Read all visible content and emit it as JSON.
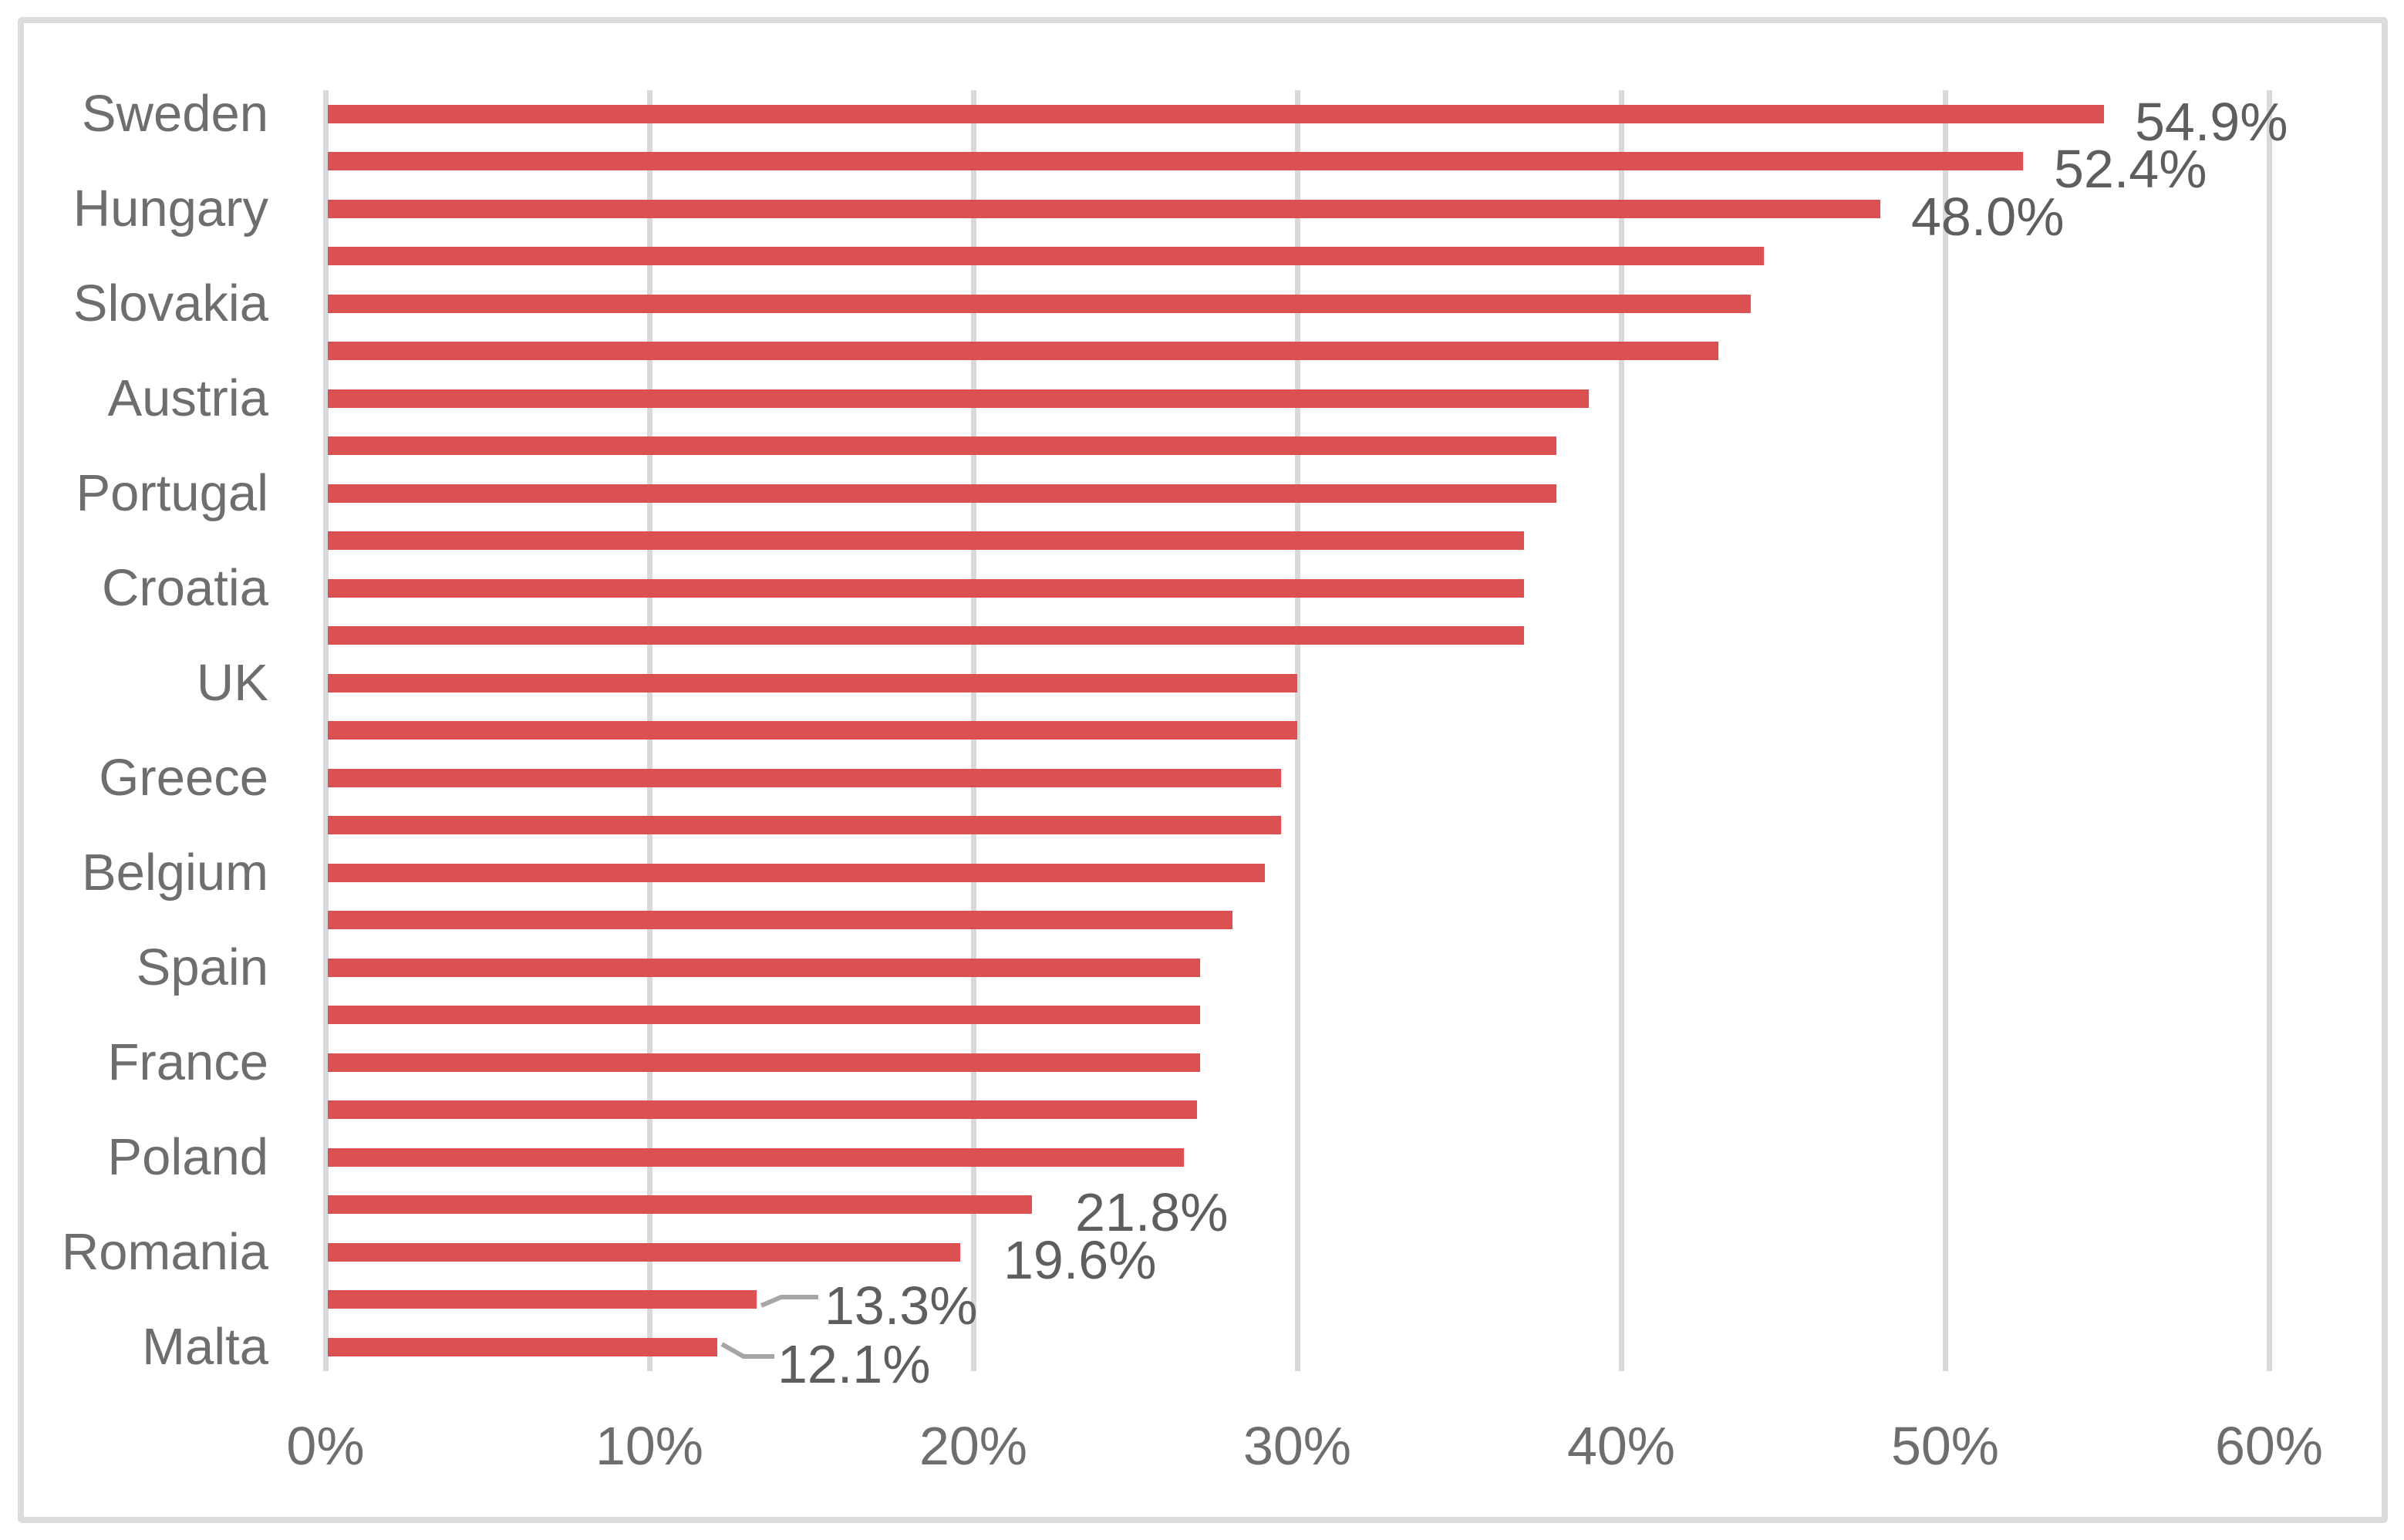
{
  "chart_data": {
    "type": "bar",
    "orientation": "horizontal",
    "title": "",
    "xlabel": "",
    "ylabel": "",
    "x_axis": {
      "ticks": [
        "0%",
        "10%",
        "20%",
        "30%",
        "40%",
        "50%",
        "60%"
      ],
      "min": 0,
      "max": 60,
      "grid": true,
      "grid_orientation": "vertical"
    },
    "legend": "none",
    "colors": {
      "bar": "#DB5050",
      "gridline": "#D9D9D9",
      "frame_border": "#DCDCDC",
      "axis_text": "#6E6E6E",
      "data_label_text": "#5E5E5E",
      "leader_line": "#A6A6A6",
      "background": "#FFFFFF"
    },
    "note": "horizontal bar chart; category labels shown on every other bar only; data labels shown on a subset of bars",
    "rows": [
      {
        "country": "Sweden",
        "value": 54.9,
        "data_label": "54.9%",
        "callout": false
      },
      {
        "country": "",
        "value": 52.4,
        "data_label": "52.4%",
        "callout": false
      },
      {
        "country": "Hungary",
        "value": 48.0,
        "data_label": "48.0%",
        "callout": false
      },
      {
        "country": "",
        "value": 44.4,
        "data_label": "",
        "callout": false
      },
      {
        "country": "Slovakia",
        "value": 44.0,
        "data_label": "",
        "callout": false
      },
      {
        "country": "",
        "value": 43.0,
        "data_label": "",
        "callout": false
      },
      {
        "country": "Austria",
        "value": 39.0,
        "data_label": "",
        "callout": false
      },
      {
        "country": "",
        "value": 38.0,
        "data_label": "",
        "callout": false
      },
      {
        "country": "Portugal",
        "value": 38.0,
        "data_label": "",
        "callout": false
      },
      {
        "country": "",
        "value": 37.0,
        "data_label": "",
        "callout": false
      },
      {
        "country": "Croatia",
        "value": 37.0,
        "data_label": "",
        "callout": false
      },
      {
        "country": "",
        "value": 37.0,
        "data_label": "",
        "callout": false
      },
      {
        "country": "UK",
        "value": 30.0,
        "data_label": "",
        "callout": false
      },
      {
        "country": "",
        "value": 30.0,
        "data_label": "",
        "callout": false
      },
      {
        "country": "Greece",
        "value": 29.5,
        "data_label": "",
        "callout": false
      },
      {
        "country": "",
        "value": 29.5,
        "data_label": "",
        "callout": false
      },
      {
        "country": "Belgium",
        "value": 29.0,
        "data_label": "",
        "callout": false
      },
      {
        "country": "",
        "value": 28.0,
        "data_label": "",
        "callout": false
      },
      {
        "country": "Spain",
        "value": 27.0,
        "data_label": "",
        "callout": false
      },
      {
        "country": "",
        "value": 27.0,
        "data_label": "",
        "callout": false
      },
      {
        "country": "France",
        "value": 27.0,
        "data_label": "",
        "callout": false
      },
      {
        "country": "",
        "value": 26.9,
        "data_label": "",
        "callout": false
      },
      {
        "country": "Poland",
        "value": 26.5,
        "data_label": "",
        "callout": false
      },
      {
        "country": "",
        "value": 21.8,
        "data_label": "21.8%",
        "callout": false
      },
      {
        "country": "Romania",
        "value": 19.6,
        "data_label": "19.6%",
        "callout": false
      },
      {
        "country": "",
        "value": 13.3,
        "data_label": "13.3%",
        "callout": true
      },
      {
        "country": "Malta",
        "value": 12.1,
        "data_label": "12.1%",
        "callout": true
      }
    ]
  }
}
